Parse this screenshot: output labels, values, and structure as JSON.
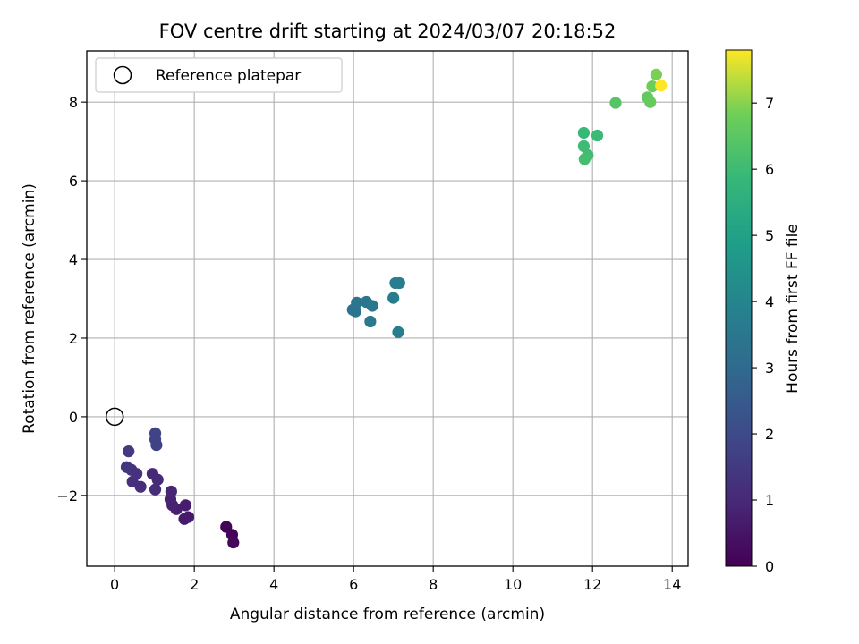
{
  "chart_data": {
    "type": "scatter",
    "title": "FOV centre drift starting at 2024/03/07 20:18:52",
    "xlabel": "Angular distance from reference (arcmin)",
    "ylabel": "Rotation from reference (arcmin)",
    "xlim": [
      -0.7,
      14.4
    ],
    "ylim": [
      -3.8,
      9.3
    ],
    "xticks": [
      "0",
      "2",
      "4",
      "6",
      "8",
      "10",
      "12",
      "14"
    ],
    "xtick_values": [
      0,
      2,
      4,
      6,
      8,
      10,
      12,
      14
    ],
    "yticks": [
      "−2",
      "0",
      "2",
      "4",
      "6",
      "8"
    ],
    "ytick_values": [
      -2,
      0,
      2,
      4,
      6,
      8
    ],
    "grid": true,
    "legend": {
      "position": "upper-left",
      "entries": [
        "Reference platepar"
      ]
    },
    "reference": {
      "x": 0,
      "y": 0,
      "marker": "hollow-circle"
    },
    "colorbar": {
      "label": "Hours from first FF file",
      "colormap": "viridis",
      "range": [
        0,
        7.8
      ],
      "ticks": [
        "0",
        "1",
        "2",
        "3",
        "4",
        "5",
        "6",
        "7"
      ],
      "tick_values": [
        0,
        1,
        2,
        3,
        4,
        5,
        6,
        7
      ]
    },
    "points": [
      {
        "x": 2.8,
        "y": -2.8,
        "t": 0.05
      },
      {
        "x": 2.95,
        "y": -3.0,
        "t": 0.1
      },
      {
        "x": 2.98,
        "y": -3.2,
        "t": 0.15
      },
      {
        "x": 1.85,
        "y": -2.55,
        "t": 0.6
      },
      {
        "x": 1.75,
        "y": -2.6,
        "t": 0.65
      },
      {
        "x": 1.78,
        "y": -2.25,
        "t": 0.7
      },
      {
        "x": 1.55,
        "y": -2.35,
        "t": 0.75
      },
      {
        "x": 1.45,
        "y": -2.25,
        "t": 0.8
      },
      {
        "x": 1.4,
        "y": -2.1,
        "t": 0.85
      },
      {
        "x": 1.42,
        "y": -1.9,
        "t": 0.9
      },
      {
        "x": 0.95,
        "y": -1.45,
        "t": 1.0
      },
      {
        "x": 1.08,
        "y": -1.6,
        "t": 1.05
      },
      {
        "x": 1.02,
        "y": -1.85,
        "t": 1.1
      },
      {
        "x": 0.65,
        "y": -1.78,
        "t": 1.15
      },
      {
        "x": 0.45,
        "y": -1.65,
        "t": 1.2
      },
      {
        "x": 0.55,
        "y": -1.45,
        "t": 1.25
      },
      {
        "x": 0.42,
        "y": -1.35,
        "t": 1.3
      },
      {
        "x": 0.3,
        "y": -1.28,
        "t": 1.35
      },
      {
        "x": 0.35,
        "y": -0.88,
        "t": 1.5
      },
      {
        "x": 1.05,
        "y": -0.72,
        "t": 1.7
      },
      {
        "x": 1.02,
        "y": -0.58,
        "t": 1.75
      },
      {
        "x": 1.02,
        "y": -0.42,
        "t": 1.8
      },
      {
        "x": 5.98,
        "y": 2.72,
        "t": 3.3
      },
      {
        "x": 6.05,
        "y": 2.68,
        "t": 3.35
      },
      {
        "x": 6.08,
        "y": 2.9,
        "t": 3.4
      },
      {
        "x": 6.32,
        "y": 2.92,
        "t": 3.45
      },
      {
        "x": 6.47,
        "y": 2.82,
        "t": 3.5
      },
      {
        "x": 6.42,
        "y": 2.42,
        "t": 3.55
      },
      {
        "x": 7.0,
        "y": 3.02,
        "t": 3.65
      },
      {
        "x": 7.05,
        "y": 3.4,
        "t": 3.7
      },
      {
        "x": 7.15,
        "y": 3.4,
        "t": 3.75
      },
      {
        "x": 7.12,
        "y": 2.15,
        "t": 3.8
      },
      {
        "x": 11.78,
        "y": 7.22,
        "t": 5.9
      },
      {
        "x": 12.12,
        "y": 7.15,
        "t": 5.95
      },
      {
        "x": 11.78,
        "y": 6.88,
        "t": 6.0
      },
      {
        "x": 11.88,
        "y": 6.65,
        "t": 6.05
      },
      {
        "x": 11.8,
        "y": 6.55,
        "t": 6.1
      },
      {
        "x": 12.58,
        "y": 7.98,
        "t": 6.4
      },
      {
        "x": 13.38,
        "y": 8.12,
        "t": 6.6
      },
      {
        "x": 13.45,
        "y": 8.0,
        "t": 6.7
      },
      {
        "x": 13.5,
        "y": 8.4,
        "t": 6.8
      },
      {
        "x": 13.6,
        "y": 8.7,
        "t": 6.9
      },
      {
        "x": 13.72,
        "y": 8.42,
        "t": 7.8
      }
    ]
  }
}
